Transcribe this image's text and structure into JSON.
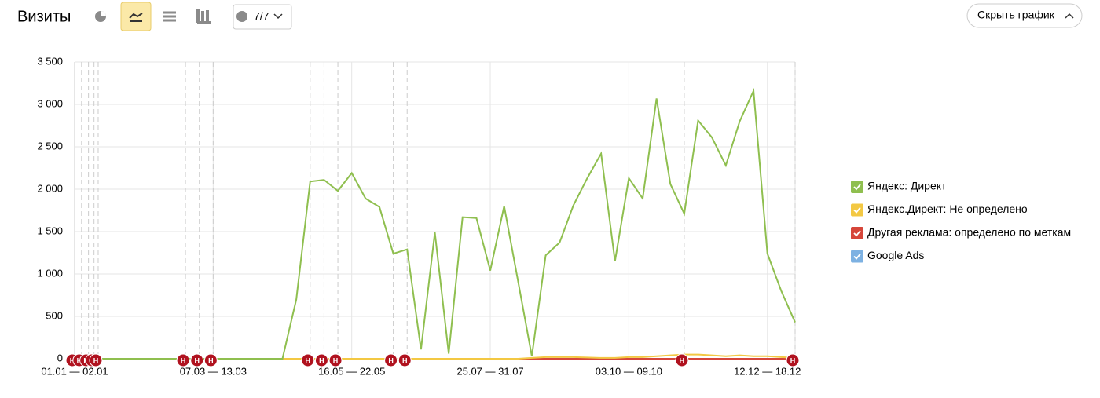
{
  "toolbar": {
    "title": "Визиты",
    "counter": "7/7",
    "hide_button": "Скрыть график"
  },
  "chart_data": {
    "type": "line",
    "categories": [
      "01.01 — 02.01",
      null,
      null,
      null,
      null,
      null,
      null,
      null,
      null,
      null,
      "07.03 — 13.03",
      null,
      null,
      null,
      null,
      null,
      null,
      null,
      null,
      null,
      "16.05 — 22.05",
      null,
      null,
      null,
      null,
      null,
      null,
      null,
      null,
      null,
      "25.07 — 31.07",
      null,
      null,
      null,
      null,
      null,
      null,
      null,
      null,
      null,
      "03.10 — 09.10",
      null,
      null,
      null,
      null,
      null,
      null,
      null,
      null,
      null,
      "12.12 — 18.12",
      null,
      null
    ],
    "ylim": [
      0,
      3500
    ],
    "yticks": [
      0,
      500,
      {
        "value": 1000,
        "label": "1 000"
      },
      {
        "value": 1500,
        "label": "1 500"
      },
      {
        "value": 2000,
        "label": "2 000"
      },
      {
        "value": 2500,
        "label": "2 500"
      },
      {
        "value": 3000,
        "label": "3 000"
      },
      {
        "value": 3500,
        "label": "3 500"
      }
    ],
    "grid": true,
    "legend": "right",
    "series": [
      {
        "name": "Яндекс: Директ",
        "color": "#8fbf4f",
        "values": [
          0,
          0,
          0,
          0,
          0,
          0,
          0,
          0,
          0,
          0,
          0,
          0,
          0,
          0,
          0,
          0,
          700,
          2090,
          2110,
          1980,
          2190,
          1890,
          1790,
          1240,
          1290,
          110,
          1490,
          60,
          1670,
          1660,
          1040,
          1800,
          920,
          30,
          1220,
          1370,
          1810,
          2130,
          2420,
          1150,
          2130,
          1890,
          3070,
          2060,
          1710,
          2810,
          2610,
          2280,
          2800,
          3160,
          1240,
          800,
          430
        ]
      },
      {
        "name": "Яндекс.Директ: Не определено",
        "color": "#f3c843",
        "values": [
          0,
          0,
          0,
          0,
          0,
          0,
          0,
          0,
          0,
          0,
          0,
          0,
          0,
          0,
          0,
          0,
          0,
          0,
          0,
          0,
          0,
          0,
          0,
          0,
          0,
          0,
          0,
          0,
          0,
          0,
          0,
          0,
          0,
          10,
          20,
          20,
          20,
          15,
          10,
          10,
          20,
          20,
          30,
          40,
          50,
          50,
          40,
          30,
          40,
          30,
          30,
          20,
          10
        ]
      },
      {
        "name": "Другая реклама: определено по меткам",
        "color": "#d6463a",
        "values": [
          0,
          0,
          0,
          0,
          0,
          0,
          0,
          0,
          0,
          0,
          0,
          0,
          0,
          0,
          0,
          0,
          0,
          0,
          0,
          0,
          0,
          0,
          0,
          0,
          0,
          0,
          0,
          0,
          0,
          0,
          0,
          0,
          0,
          0,
          0,
          0,
          0,
          0,
          0,
          0,
          0,
          0,
          0,
          0,
          0,
          0,
          0,
          0,
          0,
          0,
          0,
          0,
          0
        ]
      },
      {
        "name": "Google Ads",
        "color": "#7db1e2",
        "values": [
          0,
          0,
          0,
          0,
          0,
          0,
          0,
          0,
          0,
          0,
          0,
          0,
          0,
          0,
          0,
          0,
          0,
          0,
          0,
          0,
          0,
          0,
          0,
          0,
          0,
          0,
          0,
          0,
          0,
          0,
          0,
          0,
          0,
          0,
          0,
          0,
          0,
          0,
          0,
          0,
          0,
          0,
          0,
          0,
          0,
          0,
          0,
          0,
          0,
          0,
          0,
          0,
          0
        ]
      }
    ],
    "annotations": [
      {
        "x": 0,
        "label": "Н"
      },
      {
        "x": 0.5,
        "label": "Н"
      },
      {
        "x": 1,
        "label": "Н"
      },
      {
        "x": 1.4,
        "label": "Н"
      },
      {
        "x": 1.7,
        "label": "Н"
      },
      {
        "x": 8,
        "label": "Н"
      },
      {
        "x": 9,
        "label": "Н"
      },
      {
        "x": 10,
        "label": "Н"
      },
      {
        "x": 17,
        "label": "Н"
      },
      {
        "x": 18,
        "label": "Н"
      },
      {
        "x": 19,
        "label": "Н"
      },
      {
        "x": 23,
        "label": "Н"
      },
      {
        "x": 24,
        "label": "Н"
      },
      {
        "x": 44,
        "label": "Н"
      },
      {
        "x": 52,
        "label": "Н"
      }
    ]
  }
}
